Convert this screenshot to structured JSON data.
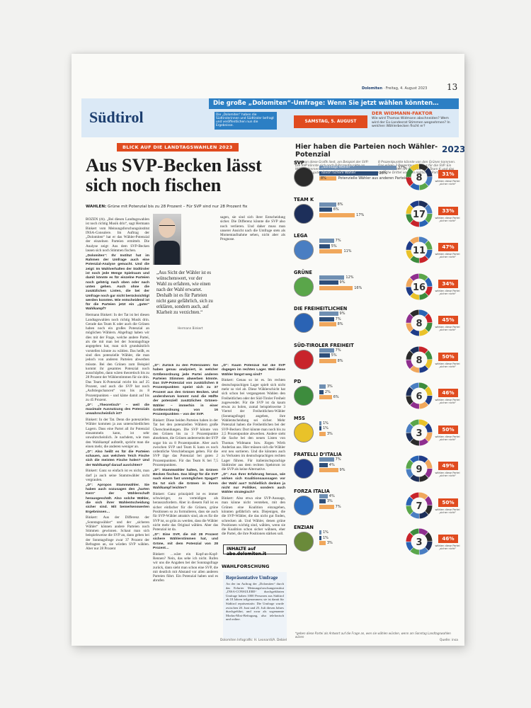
{
  "header": {
    "paper": "Dolomiten",
    "date": "Freitag, 4. August 2023",
    "page": "13"
  },
  "banner": {
    "section": "Südtirol",
    "title": "Die große „Dolomiten“-Umfrage: Wenn Sie jetzt wählen könnten…",
    "desc": "Die „Dolomiten“ haben die Südtirolerinnen und Südtiroler befragt und veröffentlichen nun die Ergebnisse.",
    "date": "SAMSTAG, 5. AUGUST",
    "widmann_title": "DER WIDMANN-FAKTOR",
    "widmann_text": "Wie wird Thomas Widmann abschneiden? Wem wird der Ex-Landesrat Stimmen wegnehmen? In welchen Wählerbecken fischt er?"
  },
  "article": {
    "kicker": "BLICK AUF DIE LANDTAGSWAHLEN 2023",
    "headline": "Aus SVP-Becken lässt sich noch fischen",
    "subhead_bold": "WAHLEN:",
    "subhead": "Grüne mit Potenzial bis zu 28 Prozent – Für SVP sind nur 28 Prozent fix",
    "col1": [
      "BOZEN (rb). „Bei diesen Landtagswahlen ist noch richtig Musik drin“, sagt Hermann Binkert vom Meinungsforschungsinstitut INSA-Consulere. Im Auftrag der „Dolomiten“ hat er das Wähler-Potenzial der einzelnen Parteien ermittelt. Die Analyse zeigt: Aus dem SVP-Becken lassen sich noch Stimmen fischen.",
      "„Dolomiten“: Ihr Institut hat im Rahmen der Umfrage auch eine Potenzial-Analyse gemacht. Und die zeigt: Im Wahlverhalten der Südtiroler ist noch jede Menge Spielraum und damit könnte es für einzelne Parteien noch gehörig nach oben oder nach unten gehen. Auch ohne die zusätzlichen Listen, die bei der Umfrage noch gar nicht berücksichtigt werden konnten. Wie entscheidend ist für die Parteien jetzt ein „guter“ Wahlkampf?",
      "Hermann Binkert: In der Tat ist bei diesen Landtagswahlen noch richtig Musik drin. Gerade das Team K oder auch die Grünen haben noch ein großes Potenzial an möglichen Wählern. Abgefragt haben wir dies mit der Frage, welche andere Partei, als die mit man bei der Sonntagsfrage angegeben hat, man sich grundsätzlich vorstellen könnte zu wählen. Das heißt, es sind dies potenzielle Wähler, die man jedoch von anderen Parteien abwerben müsste. Bei den Grünen zum Beispiel kommt ihr gesamtes Potenzial noch ausschöpfen, dann wären theoretisch bis zu 28 Prozent der Wählerstimmen für sie drin. Das Team K-Potenzial reicht bis auf 25 Prozent, und auch die SVP hat noch „Aufstiegschancen“ von bis zu 8 Prozentpunkten – und käme damit auf bis zu 45 Prozent.",
      "„D“: „Theoretisch“ – weil die maximale Ausnutzung des Potenzials unwahrscheinlich ist?",
      "Binkert: In der Tat. Denn die potenziellen Wähler kommen ja aus unterschiedlichen Lagern. Dass eine Partei all ihr Potenzial einsammeln kann, ist sehr unwahrscheinlich. Je nachdem, wie man den Wahlkampf aufstellt, spricht man die einen mehr, die anderen weniger an.",
      "„D“: Also heißt es für die Parteien schauen, aus welchem Teich Fische sich die meisten Fische holen? Und der Wahlkampf darauf ausrichten?",
      "Binkert: Ganz so einfach ist es nicht, man darf ja auch seine Stammwähler nicht vergraulen.",
      "„D“: Apropos Stammwähler. Sie haben auch sozusagen den „harten Kern“ der Wählerschaft herausgeschält. Also solche Wähler, die sich ihrer Wahlentscheidung sicher sind. Mit bemerkenswerten Ergebnissen…",
      "Binkert: Aus der Differenz der „Sonntagswähler“ und der „sicheren Wähler“ können andere Parteien noch Stimmen gewinnen. Schaut man sich beispielsweise die SVP an, dann geben bei der Sonntagsfrage zwar 37 Prozent der Befragten an, sie würden SVP wählen. Aber nur 28 Prozent"
    ],
    "col2": [
      "„D“: Zurück zu den Potenzialen: Sie haben genau analysiert, in welcher Größenordnung jede Partei anderen Parteien Stimmen abwerben könnte. Das SVP-Potenzial von zusätzlichen 8 Prozentpunkten speist sich zu 37 Prozent aus den Grünen Becken. Und andersherum kommt rund die Hälfte der potenziell zusätzlichen Grünen-Wähler – immerhin in einer Größenordnung von 16 Prozentpunkten – von der SVP.",
      "Binkert: Diese beiden Parteien haben in der Tat bei den potenziellen Wählern große Überschneidungen. Die SVP könnte von den Grünen bis zu 3 Prozentpunkte abnehmen, die Grünen andererseits der SVP sogar bis zu 8 Prozentpunkte. Aber auch zwischen SVP und Team K kann es noch ordentliche Verschiebungen geben. Für die SVP läge das Potenzial bei guten 2 Prozentpunkten. Für das Team K bei 7,5 Prozentpunkten.",
      "„D“: Stammwähler halten, im Grünen Becken fischen. Das klingt für die SVP nach einem fast unmöglichen Spagat? Da tut sich die Grünen in ihrem Wahlkampf leichter?",
      "Binkert: Ganz prinzipiell ist es immer schwieriger, zu verteidigen als herauszufordern. Aber in diesem Fall ist es sicher einfacher für die Grünen, grüne Positionen so zu formulieren, dass sie auch für SVP-Wähler attraktiv sind, als es für die SVP ist, so grün zu werden, dass die Wähler nicht mehr das Original wählen. Aber das Potenzial ist da.",
      "„D“: Eine SVP, die mit 28 Prozent sichere Wählerstimmen hat, und Grüne, mit dem Potenzial von 28 Prozent…",
      "Binkert: …wäre ein Kopf-an-Kopf-Rennen? Nein, das sehe ich nicht. Rufen wir uns die Angaben bei der Sonntagsfrage zurück, dann sieht man schon eine SVP, die mit deutlich mit Abstand vor allen anderen Parteien führt. Ein Potenzial haben und es abrufen"
    ],
    "col3": [
      "„D“: Kaum Potenzial hat die SVP dagegen im rechten Lager. Weil diese Wähler längst weg sind?",
      "Binkert: Genau so ist es. Im rechten deutschsprachigen Lager spielt sich nicht mehr so viel ab. Diese Wählerschicht hat sich schon bei vergangenen Wahlen den Freiheitlichen oder der Süd-Tiroler Freiheit zugewendet. Für die SVP ist da kaum etwas zu holen, zumal beispielsweise 3 Viertel der Freiheitlichen-Wähler (Sonntagsfrage) angeben, ihre Wahlentscheidung sei sicher. Mehr Potenzial haben die Freiheitlichen bei der SVP-Becken: Dort könnte man noch bis zu 2,5 Prozentpunkte abwerben. Andere sieht die Sache bei den neuen Listen von Thomas Widmann bzw. Jürgen Wirth Anderlan aus. Hier müssen sich die Wähler erst neu sortieren. Und die könnten auch zu Verlusten im deutschsprachigen rechten Lager führen. Für italienischsprachige Südtiroler aus dem rechten Spektrum ist die SVP als keine Alternative.",
      "„D“: Aus Ihrer Erfahrung heraus, wie wirken sich Koalitionsaussagen vor der Wahl aus? Schließlich denken ja nicht nur Politiker, sondern auch Wähler strategisch?",
      "Binkert: Also etwa eine SVP-Aussage, man könne nicht verstehen, mit den Grünen eine Koalition einzugehen, könnten gefährlich sein. Diejenigen, die die SVP-Wähler, die das nicht gut finden, schrecken ab. Und Wähler, denen grüne Positionen wichtig sind, wählen, wenn sie die Koalition schon sicher wähnen, eher die Partei, die ihre Positionen stärken soll."
    ],
    "col4": [
      "sagen, sie sind sich ihrer Entscheidung sicher. Die Differenz könnte die SVP also noch verlieren. Und daher muss man unserer Ansicht nach die Umfrage stets als Momentaufnahme sehen, nicht aber als Prognose."
    ],
    "quote": "„Aus Sicht der Wähler ist es wünschenswert, vor der Wahl zu erfahren, wie einen nach der Wahl erwartet. Deshalb ist es für Parteien nicht ganz gefährlich, sich zu erklären, sondern auch, auf Klarheit zu verzichten.“",
    "quote_source": "Hermann Binkert",
    "info_box": "INHALTE auf abo.dolomiten.it",
    "methodology_label": "WAHLFORSCHUNG",
    "methodology_title": "Repräsentative Umfrage",
    "methodology_text": "An der im Auftrag der „Dolomiten“ durch das Erfurter Meinungsforschungsinstitut „INSA-CONSULERE“ durchgeführten Umfrage haben 1000 Personen aus Südtirol ab 18 Jahren teilgenommen; sie ist damit für Südtirol repräsentativ. Die Umfrage wurde zwischen 20. Juni und 25. Juli diesen Jahres durchgeführt, und zwar als sogenannte Modus-Mixt-Befragung, also telefonisch und online.",
    "footer_meta": "Dolomiten  Infografik: H. Leonardi/A. Debiel",
    "footer_src": "Quelle: insa"
  },
  "panel": {
    "title": "Hier haben die Parteien noch Wähler-Potenzial",
    "logo": "2023",
    "intro_left": "Wie man diese Grafik liest, am Beispiel der SVP: Die SVP könnte sich noch 8 Prozentpunkte an Wählerstimmen von anderen Parteien an Land ziehen. Ein gutes Drittel (37 Prozent) dieser",
    "intro_right": "8 Prozentpunkte könnte von den Grünen kommen. Das wären 3 Prozentpunkte Plus für die SVP. Ein knappes Drittel (29 Prozent) vom Team K und das restliche Drittel von den restlichen Parteien.",
    "svp_labels": [
      "„Sonntags-Wähler“ *",
      "davon sichere Wähler",
      "Potenzielle Wähler aus anderen Parteien"
    ],
    "note_text": "wählen diese Partei „sicher nicht“",
    "footnote": "*geben diese Partei als Antwort auf die Frage an, wen sie wählen würden, wenn am Sonntag Landtagswahlen wären",
    "parties": [
      {
        "name": "SVP",
        "sunday": 37,
        "sure": 28,
        "potential": 8,
        "never": "31%",
        "logo_color": "#2b2b2b"
      },
      {
        "name": "TEAM K",
        "sunday": 8,
        "sure": 6,
        "potential": 17,
        "never": "33%",
        "logo_color": "#1d2f5a"
      },
      {
        "name": "LEGA",
        "sunday": 7,
        "sure": 5,
        "potential": 11,
        "never": "47%",
        "logo_color": "#4a7ec2"
      },
      {
        "name": "GRÜNE",
        "sunday": 12,
        "sure": 9,
        "potential": 16,
        "never": "34%",
        "logo_color": "#5aa64a"
      },
      {
        "name": "DIE FREIHEITLICHEN",
        "sunday": 9,
        "sure": 7,
        "potential": 8,
        "never": "45%",
        "logo_color": "#2a63b4"
      },
      {
        "name": "SÜD-TIROLER FREIHEIT",
        "sunday": 7,
        "sure": 5,
        "potential": 8,
        "never": "50%",
        "logo_color": "#c8242b"
      },
      {
        "name": "PD",
        "sunday": 3,
        "sure": 2,
        "potential": 6,
        "never": "46%",
        "logo_color": "#3d8c3d"
      },
      {
        "name": "M5S",
        "sunday": 1,
        "sure": 1,
        "potential": 3,
        "never": "50%",
        "logo_color": "#e9c229"
      },
      {
        "name": "FRATELLI D’ITALIA",
        "sunday": 7,
        "sure": 4,
        "potential": 9,
        "never": "49%",
        "logo_color": "#1f3c88"
      },
      {
        "name": "FORZA ITALIA",
        "sunday": 4,
        "sure": 3,
        "potential": 7,
        "never": "50%",
        "logo_color": "#2f6fc0"
      },
      {
        "name": "ENZIAN",
        "sunday": 1,
        "sure": 1,
        "potential": 3,
        "never": "46%",
        "logo_color": "#6a8a3a"
      }
    ],
    "colors": {
      "sunday": "#6f8fb2",
      "sure": "#2e4f7a",
      "potential": "#f0a75c",
      "never_red": "#e04b1f",
      "donut_segments": [
        "#2b2b2b",
        "#1d2f5a",
        "#4a7ec2",
        "#5aa64a",
        "#2a63b4",
        "#c8242b",
        "#3d8c3d",
        "#e9c229",
        "#1f3c88",
        "#f0a75c",
        "#8f2f8f"
      ]
    }
  }
}
